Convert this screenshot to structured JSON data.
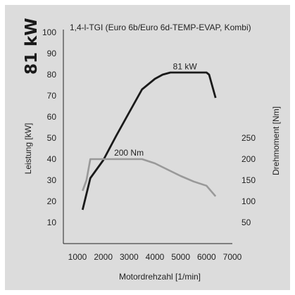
{
  "power_badge": "81 kW",
  "chart_data": {
    "type": "line",
    "title": "1,4-l-TGI (Euro 6b/Euro 6d-TEMP-EVAP, Kombi)",
    "xlabel": "Motordrehzahl [1/min]",
    "ylabel_left": "Leistung [kW]",
    "ylabel_right": "Drehmoment [Nm]",
    "xlim": [
      1000,
      7000
    ],
    "ylim_left": [
      0,
      100
    ],
    "ylim_right": [
      0,
      250
    ],
    "x_ticks": [
      1000,
      2000,
      3000,
      4000,
      5000,
      6000,
      7000
    ],
    "y_ticks_left": [
      10,
      20,
      30,
      40,
      50,
      60,
      70,
      80,
      90,
      100
    ],
    "y_ticks_right": [
      50,
      100,
      150,
      200,
      250
    ],
    "grid": false,
    "series": [
      {
        "name": "81 kW",
        "axis": "left",
        "color": "#1a1a1a",
        "x": [
          1200,
          1500,
          2000,
          2500,
          3000,
          3500,
          4000,
          4300,
          4600,
          5000,
          5500,
          6000,
          6100,
          6350
        ],
        "y": [
          16,
          31,
          39.5,
          51,
          62,
          73,
          78,
          80,
          81,
          81,
          81,
          81,
          80,
          69
        ]
      },
      {
        "name": "200 Nm",
        "axis": "right",
        "color": "#999999",
        "x": [
          1200,
          1350,
          1500,
          2000,
          2500,
          3000,
          3500,
          4000,
          4500,
          5000,
          5500,
          6000,
          6350
        ],
        "y": [
          125,
          150,
          200,
          200,
          200,
          200,
          200,
          190,
          175,
          160,
          147,
          137,
          112
        ]
      }
    ],
    "annotations": [
      {
        "text": "81 kW",
        "series": "81 kW"
      },
      {
        "text": "200 Nm",
        "series": "200 Nm"
      }
    ]
  }
}
